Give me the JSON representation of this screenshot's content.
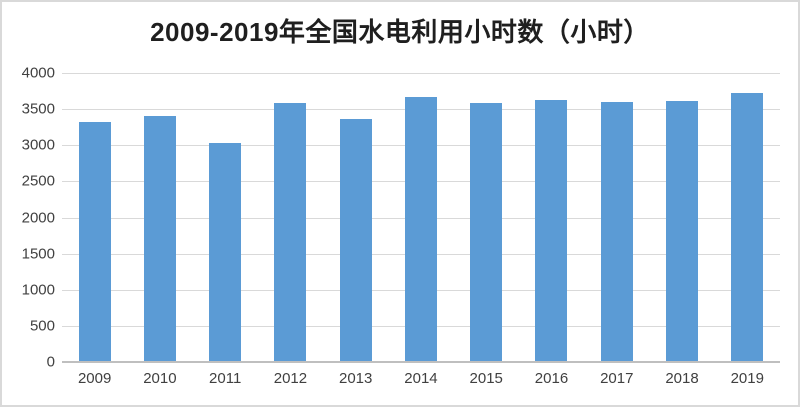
{
  "chart_data": {
    "type": "bar",
    "title": "2009-2019年全国水电利用小时数（小时）",
    "categories": [
      "2009",
      "2010",
      "2011",
      "2012",
      "2013",
      "2014",
      "2015",
      "2016",
      "2017",
      "2018",
      "2019"
    ],
    "values": [
      3328,
      3404,
      3028,
      3591,
      3359,
      3669,
      3590,
      3621,
      3597,
      3613,
      3726
    ],
    "xlabel": "",
    "ylabel": "",
    "ylim": [
      0,
      4000
    ],
    "y_ticks": [
      0,
      500,
      1000,
      1500,
      2000,
      2500,
      3000,
      3500,
      4000
    ],
    "grid": true,
    "legend_position": "none",
    "bar_color": "#5B9BD5",
    "gridline_color": "#D9D9D9",
    "axis_line_color": "#BFBFBF",
    "tick_label_color": "#404040",
    "title_color": "#1F1F1F",
    "background_color": "#FFFFFF",
    "border_color": "#D9D9D9"
  }
}
